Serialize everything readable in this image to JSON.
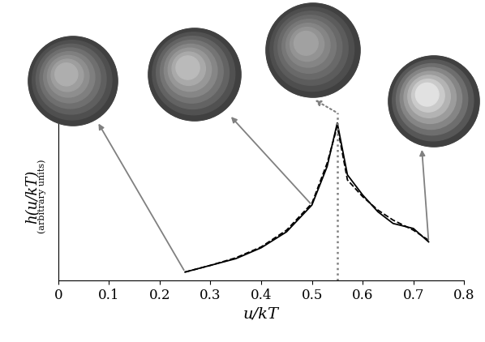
{
  "chart_data": {
    "type": "line",
    "x_label": "u/kT",
    "y_label": "h(u/kT)",
    "y_label_note": "(arbitrary units)",
    "x": [
      0.25,
      0.3,
      0.35,
      0.4,
      0.45,
      0.5,
      0.53,
      0.55,
      0.57,
      0.6,
      0.63,
      0.66,
      0.7,
      0.73
    ],
    "series": [
      {
        "color": "#000000",
        "line_style": "solid",
        "values": [
          5,
          9,
          13,
          19.5,
          29,
          45,
          68,
          94,
          63,
          51,
          41,
          34,
          31,
          23
        ]
      },
      {
        "color": "#000000",
        "line_style": "dashed",
        "values": [
          5,
          9,
          13.5,
          20,
          30,
          46,
          70,
          92,
          60,
          50,
          42,
          36,
          30,
          24
        ]
      }
    ],
    "reference_line": 0.55,
    "xlim": [
      0,
      0.8
    ],
    "xticks": [
      0,
      0.1,
      0.2,
      0.3,
      0.4,
      0.5,
      0.6,
      0.7,
      0.8
    ],
    "ylim": [
      0,
      100
    ],
    "yticks": [],
    "tick_labels": "x",
    "grid": false
  }
}
